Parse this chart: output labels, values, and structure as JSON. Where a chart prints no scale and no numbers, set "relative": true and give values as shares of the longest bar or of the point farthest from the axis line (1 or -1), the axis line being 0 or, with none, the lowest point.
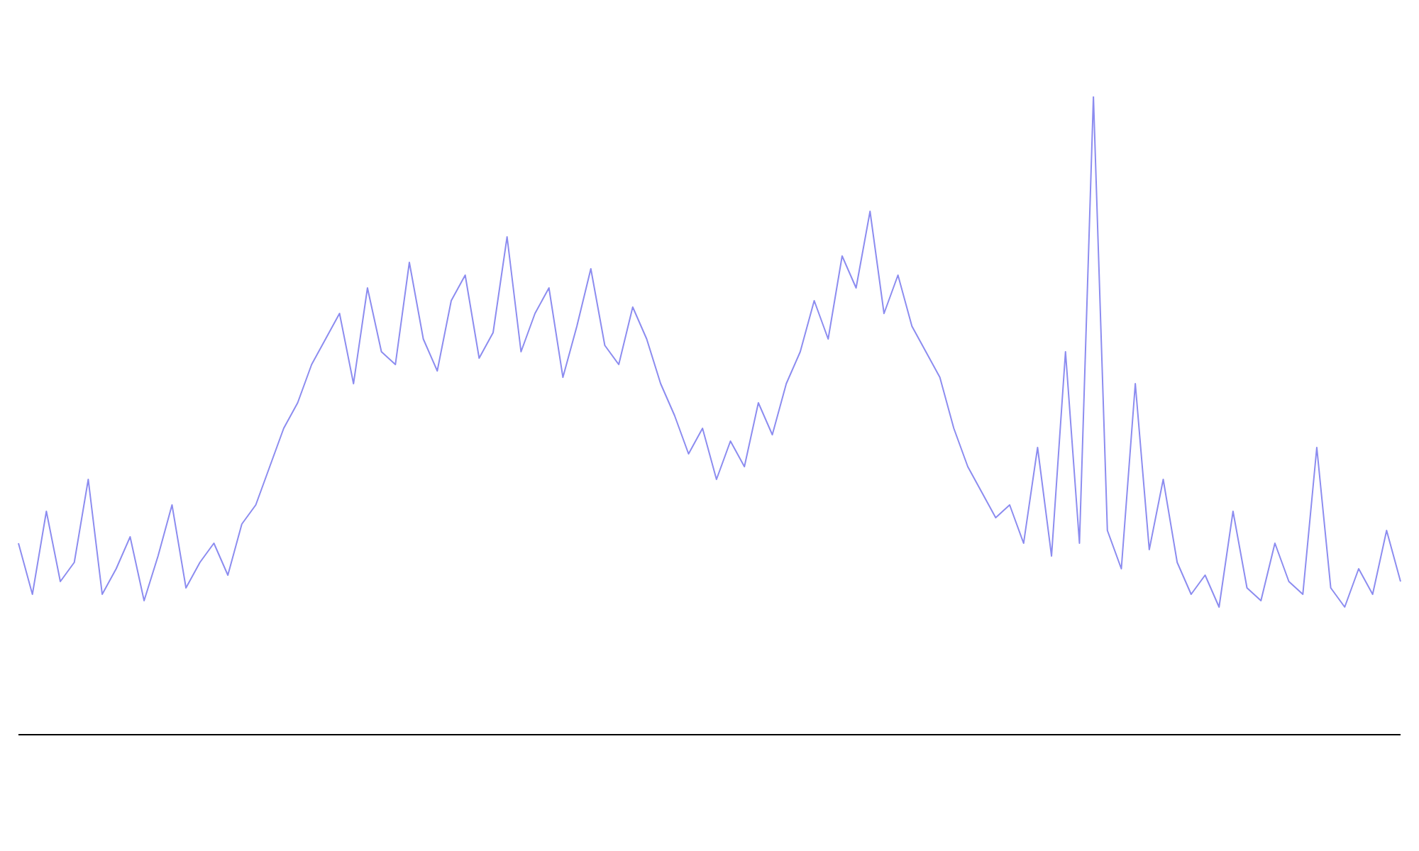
{
  "chart_data": {
    "type": "line",
    "relative": true,
    "marker": "none",
    "grid": false,
    "legend": false,
    "categories": [
      null,
      null,
      null,
      null,
      null,
      null,
      null,
      null,
      null,
      null,
      null,
      null,
      null,
      null,
      null,
      null,
      null,
      null,
      null,
      null,
      null,
      null,
      null,
      null,
      null,
      null,
      null,
      null,
      null,
      null,
      null,
      null,
      null,
      null,
      null,
      null,
      null,
      null,
      null,
      null,
      null,
      null,
      null,
      null,
      null,
      null,
      null,
      null,
      null,
      null,
      null,
      null,
      null,
      null,
      null,
      null,
      null,
      null,
      null,
      null,
      null,
      null,
      null,
      null,
      null,
      null,
      null,
      null,
      null,
      null,
      null,
      null,
      null,
      null,
      null,
      null,
      null,
      null,
      null,
      null,
      null,
      null,
      null,
      null,
      null,
      null,
      null,
      null,
      null,
      null,
      null,
      null,
      null,
      null,
      null,
      null,
      null,
      null,
      null,
      null
    ],
    "series": [
      {
        "color": "#8c8cf0",
        "values": [
          0.3,
          0.22,
          0.35,
          0.24,
          0.27,
          0.4,
          0.22,
          0.26,
          0.31,
          0.21,
          0.28,
          0.36,
          0.23,
          0.27,
          0.3,
          0.25,
          0.33,
          0.36,
          0.42,
          0.48,
          0.52,
          0.58,
          0.62,
          0.66,
          0.55,
          0.7,
          0.6,
          0.58,
          0.74,
          0.62,
          0.57,
          0.68,
          0.72,
          0.59,
          0.63,
          0.78,
          0.6,
          0.66,
          0.7,
          0.56,
          0.64,
          0.73,
          0.61,
          0.58,
          0.67,
          0.62,
          0.55,
          0.5,
          0.44,
          0.48,
          0.4,
          0.46,
          0.42,
          0.52,
          0.47,
          0.55,
          0.6,
          0.68,
          0.62,
          0.75,
          0.7,
          0.82,
          0.66,
          0.72,
          0.64,
          0.6,
          0.56,
          0.48,
          0.42,
          0.38,
          0.34,
          0.36,
          0.3,
          0.45,
          0.28,
          0.6,
          0.3,
          1.0,
          0.32,
          0.26,
          0.55,
          0.29,
          0.4,
          0.27,
          0.22,
          0.25,
          0.2,
          0.35,
          0.23,
          0.21,
          0.3,
          0.24,
          0.22,
          0.45,
          0.23,
          0.2,
          0.26,
          0.22,
          0.32,
          0.24
        ]
      }
    ]
  }
}
